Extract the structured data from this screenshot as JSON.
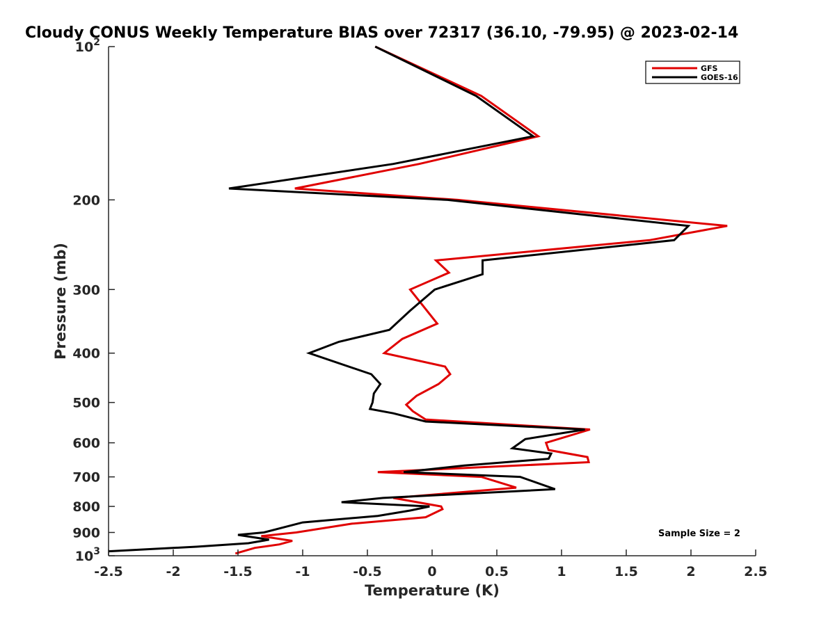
{
  "chart_data": {
    "type": "line",
    "title": "Cloudy CONUS Weekly Temperature BIAS over 72317 (36.10, -79.95) @ 2023-02-14",
    "xlabel": "Temperature (K)",
    "ylabel": "Pressure (mb)",
    "xlim": [
      -2.5,
      2.5
    ],
    "ylim": [
      100,
      1000
    ],
    "yscale": "log",
    "y_reversed": true,
    "grid": false,
    "legend_position": "top-right",
    "x_ticks": [
      "-2.5",
      "-2",
      "-1.5",
      "-1",
      "-0.5",
      "0",
      "0.5",
      "1",
      "1.5",
      "2",
      "2.5"
    ],
    "x_tick_values": [
      -2.5,
      -2,
      -1.5,
      -1,
      -0.5,
      0,
      0.5,
      1,
      1.5,
      2,
      2.5
    ],
    "y_ticks": [
      {
        "value": 100,
        "base": "10",
        "exp": "2"
      },
      {
        "value": 200,
        "label": "200"
      },
      {
        "value": 300,
        "label": "300"
      },
      {
        "value": 400,
        "label": "400"
      },
      {
        "value": 500,
        "label": "500"
      },
      {
        "value": 600,
        "label": "600"
      },
      {
        "value": 700,
        "label": "700"
      },
      {
        "value": 800,
        "label": "800"
      },
      {
        "value": 900,
        "label": "900"
      },
      {
        "value": 1000,
        "base": "10",
        "exp": "3"
      }
    ],
    "annotation": "Sample Size = 2",
    "series": [
      {
        "name": "GFS",
        "color": "#e00000",
        "points": [
          [
            -0.44,
            100
          ],
          [
            0.38,
            125
          ],
          [
            0.82,
            150
          ],
          [
            -0.1,
            170
          ],
          [
            -1.06,
            190
          ],
          [
            0.2,
            200
          ],
          [
            2.28,
            225
          ],
          [
            1.68,
            240
          ],
          [
            0.03,
            263
          ],
          [
            0.13,
            278
          ],
          [
            -0.17,
            300
          ],
          [
            0.04,
            350
          ],
          [
            -0.23,
            375
          ],
          [
            -0.37,
            400
          ],
          [
            0.1,
            425
          ],
          [
            0.14,
            440
          ],
          [
            0.05,
            460
          ],
          [
            -0.12,
            485
          ],
          [
            -0.2,
            505
          ],
          [
            -0.15,
            520
          ],
          [
            -0.05,
            540
          ],
          [
            1.22,
            565
          ],
          [
            0.88,
            600
          ],
          [
            0.9,
            620
          ],
          [
            1.2,
            640
          ],
          [
            1.21,
            655
          ],
          [
            -0.42,
            685
          ],
          [
            0.38,
            700
          ],
          [
            0.65,
            735
          ],
          [
            -0.3,
            770
          ],
          [
            0.07,
            800
          ],
          [
            0.08,
            810
          ],
          [
            -0.05,
            840
          ],
          [
            -0.62,
            865
          ],
          [
            -1.05,
            900
          ],
          [
            -1.32,
            915
          ],
          [
            -1.08,
            935
          ],
          [
            -1.18,
            950
          ],
          [
            -1.37,
            965
          ],
          [
            -1.52,
            990
          ]
        ]
      },
      {
        "name": "GOES-16",
        "color": "#000000",
        "points": [
          [
            -0.44,
            100
          ],
          [
            0.34,
            125
          ],
          [
            0.78,
            150
          ],
          [
            -0.3,
            170
          ],
          [
            -1.57,
            190
          ],
          [
            0.12,
            200
          ],
          [
            1.98,
            225
          ],
          [
            1.87,
            240
          ],
          [
            0.39,
            263
          ],
          [
            0.39,
            280
          ],
          [
            0.02,
            300
          ],
          [
            -0.17,
            330
          ],
          [
            -0.33,
            360
          ],
          [
            -0.72,
            380
          ],
          [
            -0.95,
            400
          ],
          [
            -0.47,
            440
          ],
          [
            -0.4,
            460
          ],
          [
            -0.45,
            480
          ],
          [
            -0.46,
            500
          ],
          [
            -0.48,
            515
          ],
          [
            -0.3,
            525
          ],
          [
            -0.05,
            545
          ],
          [
            1.18,
            565
          ],
          [
            0.72,
            590
          ],
          [
            0.62,
            615
          ],
          [
            0.92,
            630
          ],
          [
            0.9,
            645
          ],
          [
            0.25,
            665
          ],
          [
            -0.22,
            685
          ],
          [
            0.68,
            700
          ],
          [
            0.95,
            740
          ],
          [
            -0.38,
            770
          ],
          [
            -0.7,
            785
          ],
          [
            -0.02,
            800
          ],
          [
            -0.17,
            815
          ],
          [
            -0.42,
            835
          ],
          [
            -1.0,
            860
          ],
          [
            -1.3,
            900
          ],
          [
            -1.5,
            910
          ],
          [
            -1.26,
            930
          ],
          [
            -1.42,
            945
          ],
          [
            -1.82,
            960
          ],
          [
            -2.5,
            980
          ]
        ]
      }
    ]
  }
}
